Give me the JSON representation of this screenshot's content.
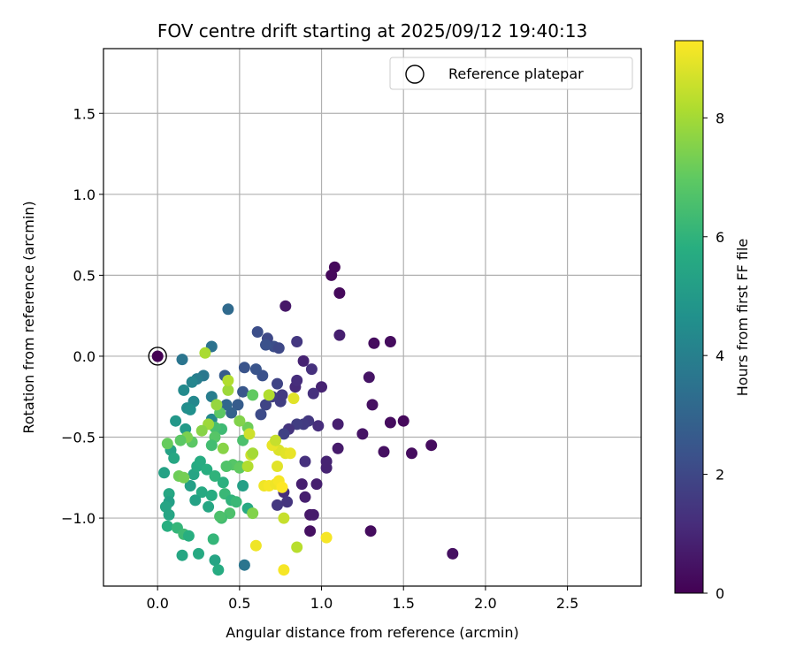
{
  "chart_data": {
    "type": "scatter",
    "title": "FOV centre drift starting at 2025/09/12 19:40:13",
    "xlabel": "Angular distance from reference (arcmin)",
    "ylabel": "Rotation from reference (arcmin)",
    "xlim": [
      -0.33,
      2.95
    ],
    "ylim": [
      -1.42,
      1.9
    ],
    "xticks": [
      0.0,
      0.5,
      1.0,
      1.5,
      2.0,
      2.5
    ],
    "xtick_labels": [
      "0.0",
      "0.5",
      "1.0",
      "1.5",
      "2.0",
      "2.5"
    ],
    "yticks": [
      -1.0,
      -0.5,
      0.0,
      0.5,
      1.0,
      1.5
    ],
    "ytick_labels": [
      "−1.0",
      "−0.5",
      "0.0",
      "0.5",
      "1.0",
      "1.5"
    ],
    "grid": true,
    "legend": {
      "placement": "top-right",
      "entries": [
        "Reference platepar"
      ]
    },
    "reference_point": {
      "x": 0.0,
      "y": 0.0
    },
    "colorbar": {
      "label": "Hours from first FF file",
      "range": [
        0,
        9.3
      ],
      "ticks": [
        0,
        2,
        4,
        6,
        8
      ],
      "tick_labels": [
        "0",
        "2",
        "4",
        "6",
        "8"
      ],
      "colormap": "viridis"
    },
    "points": [
      [
        0.0,
        0.0,
        0.0
      ],
      [
        1.08,
        0.55,
        0.2
      ],
      [
        1.06,
        0.5,
        0.2
      ],
      [
        1.11,
        0.39,
        0.2
      ],
      [
        0.78,
        0.31,
        0.6
      ],
      [
        1.11,
        0.13,
        0.8
      ],
      [
        1.32,
        0.08,
        0.3
      ],
      [
        1.42,
        0.09,
        0.3
      ],
      [
        1.29,
        -0.13,
        0.5
      ],
      [
        1.31,
        -0.3,
        0.4
      ],
      [
        1.5,
        -0.4,
        0.2
      ],
      [
        1.42,
        -0.41,
        0.3
      ],
      [
        1.25,
        -0.48,
        0.5
      ],
      [
        1.38,
        -0.59,
        0.4
      ],
      [
        1.55,
        -0.6,
        0.3
      ],
      [
        1.67,
        -0.55,
        0.3
      ],
      [
        1.8,
        -1.22,
        0.4
      ],
      [
        1.3,
        -1.08,
        0.3
      ],
      [
        0.93,
        -1.08,
        0.4
      ],
      [
        0.93,
        -0.98,
        0.6
      ],
      [
        0.95,
        -0.98,
        0.7
      ],
      [
        0.9,
        -0.87,
        0.8
      ],
      [
        0.88,
        -0.79,
        0.8
      ],
      [
        0.97,
        -0.79,
        0.8
      ],
      [
        1.03,
        -0.69,
        0.9
      ],
      [
        1.03,
        -0.65,
        0.9
      ],
      [
        1.1,
        -0.57,
        0.7
      ],
      [
        1.1,
        -0.42,
        0.8
      ],
      [
        1.0,
        -0.19,
        0.9
      ],
      [
        0.94,
        -0.08,
        1.3
      ],
      [
        0.89,
        -0.03,
        0.9
      ],
      [
        0.85,
        0.09,
        1.5
      ],
      [
        0.98,
        -0.43,
        1.2
      ],
      [
        0.92,
        -0.4,
        1.5
      ],
      [
        0.95,
        -0.23,
        1.3
      ],
      [
        0.84,
        -0.19,
        1.1
      ],
      [
        0.85,
        -0.15,
        1.2
      ],
      [
        0.89,
        -0.42,
        1.6
      ],
      [
        0.85,
        -0.42,
        1.7
      ],
      [
        0.8,
        -0.45,
        1.4
      ],
      [
        0.77,
        -0.48,
        1.8
      ],
      [
        0.9,
        -0.65,
        1.3
      ],
      [
        0.77,
        -0.84,
        1.2
      ],
      [
        0.73,
        -0.92,
        1.5
      ],
      [
        0.79,
        -0.9,
        1.4
      ],
      [
        0.75,
        -0.28,
        1.7
      ],
      [
        0.76,
        -0.24,
        1.6
      ],
      [
        0.73,
        -0.17,
        1.9
      ],
      [
        0.7,
        -0.25,
        1.7
      ],
      [
        0.66,
        -0.3,
        1.9
      ],
      [
        0.63,
        -0.36,
        2.1
      ],
      [
        0.61,
        0.15,
        2.2
      ],
      [
        0.67,
        0.11,
        2.0
      ],
      [
        0.71,
        0.06,
        2.2
      ],
      [
        0.74,
        0.05,
        2.0
      ],
      [
        0.66,
        0.07,
        2.3
      ],
      [
        0.64,
        -0.12,
        2.3
      ],
      [
        0.6,
        -0.08,
        2.4
      ],
      [
        0.53,
        -0.07,
        2.4
      ],
      [
        0.52,
        -0.22,
        2.5
      ],
      [
        0.49,
        -0.3,
        2.7
      ],
      [
        0.45,
        -0.35,
        2.9
      ],
      [
        0.42,
        -0.3,
        3.1
      ],
      [
        0.41,
        -0.12,
        2.7
      ],
      [
        0.43,
        0.29,
        3.2
      ],
      [
        0.33,
        0.06,
        3.5
      ],
      [
        0.28,
        -0.12,
        3.7
      ],
      [
        0.24,
        -0.14,
        3.9
      ],
      [
        0.15,
        -0.02,
        3.6
      ],
      [
        0.33,
        -0.25,
        3.9
      ],
      [
        0.33,
        -0.39,
        4.3
      ],
      [
        0.16,
        -0.21,
        4.4
      ],
      [
        0.21,
        -0.16,
        4.2
      ],
      [
        0.22,
        -0.28,
        4.3
      ],
      [
        0.18,
        -0.32,
        4.5
      ],
      [
        0.2,
        -0.33,
        4.6
      ],
      [
        0.11,
        -0.4,
        4.9
      ],
      [
        0.17,
        -0.45,
        5.0
      ],
      [
        0.08,
        -0.58,
        5.3
      ],
      [
        0.1,
        -0.63,
        5.5
      ],
      [
        0.04,
        -0.72,
        5.3
      ],
      [
        0.07,
        -0.85,
        5.5
      ],
      [
        0.07,
        -0.9,
        5.2
      ],
      [
        0.05,
        -0.93,
        5.4
      ],
      [
        0.07,
        -0.98,
        5.4
      ],
      [
        0.06,
        -1.05,
        5.8
      ],
      [
        0.12,
        -1.06,
        6.1
      ],
      [
        0.16,
        -1.1,
        6.3
      ],
      [
        0.19,
        -1.11,
        5.8
      ],
      [
        0.15,
        -1.23,
        5.5
      ],
      [
        0.25,
        -1.22,
        5.6
      ],
      [
        0.35,
        -1.26,
        5.4
      ],
      [
        0.34,
        -1.13,
        6.1
      ],
      [
        0.37,
        -1.32,
        5.7
      ],
      [
        0.31,
        -0.93,
        5.5
      ],
      [
        0.33,
        -0.86,
        5.7
      ],
      [
        0.27,
        -0.84,
        5.6
      ],
      [
        0.23,
        -0.89,
        5.3
      ],
      [
        0.2,
        -0.8,
        5.2
      ],
      [
        0.22,
        -0.73,
        5.4
      ],
      [
        0.24,
        -0.68,
        5.6
      ],
      [
        0.26,
        -0.65,
        5.7
      ],
      [
        0.3,
        -0.7,
        5.8
      ],
      [
        0.35,
        -0.74,
        6.0
      ],
      [
        0.4,
        -0.78,
        5.9
      ],
      [
        0.41,
        -0.85,
        6.2
      ],
      [
        0.45,
        -0.89,
        6.0
      ],
      [
        0.48,
        -0.9,
        6.2
      ],
      [
        0.52,
        -0.8,
        5.2
      ],
      [
        0.53,
        -1.29,
        3.6
      ],
      [
        0.55,
        -0.94,
        5.6
      ],
      [
        0.58,
        -0.97,
        7.5
      ],
      [
        0.44,
        -0.97,
        6.6
      ],
      [
        0.39,
        -1.0,
        6.4
      ],
      [
        0.38,
        -0.99,
        6.6
      ],
      [
        0.5,
        -0.68,
        6.7
      ],
      [
        0.46,
        -0.67,
        6.8
      ],
      [
        0.42,
        -0.68,
        6.7
      ],
      [
        0.4,
        -0.57,
        7.6
      ],
      [
        0.39,
        -0.45,
        6.3
      ],
      [
        0.35,
        -0.44,
        6.5
      ],
      [
        0.35,
        -0.5,
        6.8
      ],
      [
        0.33,
        -0.55,
        6.4
      ],
      [
        0.38,
        -0.35,
        6.9
      ],
      [
        0.36,
        -0.3,
        7.8
      ],
      [
        0.43,
        -0.21,
        7.9
      ],
      [
        0.43,
        -0.15,
        8.2
      ],
      [
        0.31,
        -0.42,
        7.9
      ],
      [
        0.27,
        -0.46,
        7.6
      ],
      [
        0.21,
        -0.53,
        6.9
      ],
      [
        0.18,
        -0.5,
        7.4
      ],
      [
        0.14,
        -0.52,
        6.9
      ],
      [
        0.06,
        -0.54,
        7.1
      ],
      [
        0.13,
        -0.74,
        7.2
      ],
      [
        0.29,
        0.02,
        8.1
      ],
      [
        0.16,
        -0.75,
        7.3
      ],
      [
        0.52,
        -0.52,
        6.6
      ],
      [
        0.55,
        -0.44,
        7.2
      ],
      [
        0.58,
        -0.24,
        7.0
      ],
      [
        0.5,
        -0.4,
        7.5
      ],
      [
        0.57,
        -0.61,
        8.6
      ],
      [
        0.58,
        -0.6,
        8.0
      ],
      [
        0.5,
        -0.69,
        7.0
      ],
      [
        0.55,
        -0.68,
        8.2
      ],
      [
        0.65,
        -0.8,
        9.1
      ],
      [
        0.68,
        -0.8,
        9.2
      ],
      [
        0.72,
        -0.79,
        9.1
      ],
      [
        0.74,
        -0.77,
        9.2
      ],
      [
        0.76,
        -0.81,
        9.3
      ],
      [
        0.73,
        -0.68,
        8.9
      ],
      [
        0.74,
        -0.58,
        8.8
      ],
      [
        0.78,
        -0.6,
        8.9
      ],
      [
        0.81,
        -0.6,
        9.0
      ],
      [
        0.7,
        -0.55,
        9.0
      ],
      [
        0.68,
        -0.24,
        8.2
      ],
      [
        0.83,
        -0.26,
        8.9
      ],
      [
        0.72,
        -0.52,
        8.5
      ],
      [
        0.56,
        -0.48,
        8.6
      ],
      [
        0.6,
        -1.17,
        9.1
      ],
      [
        0.77,
        -1.0,
        8.5
      ],
      [
        0.77,
        -1.32,
        9.2
      ],
      [
        0.85,
        -1.18,
        8.3
      ],
      [
        1.03,
        -1.12,
        9.2
      ]
    ]
  }
}
